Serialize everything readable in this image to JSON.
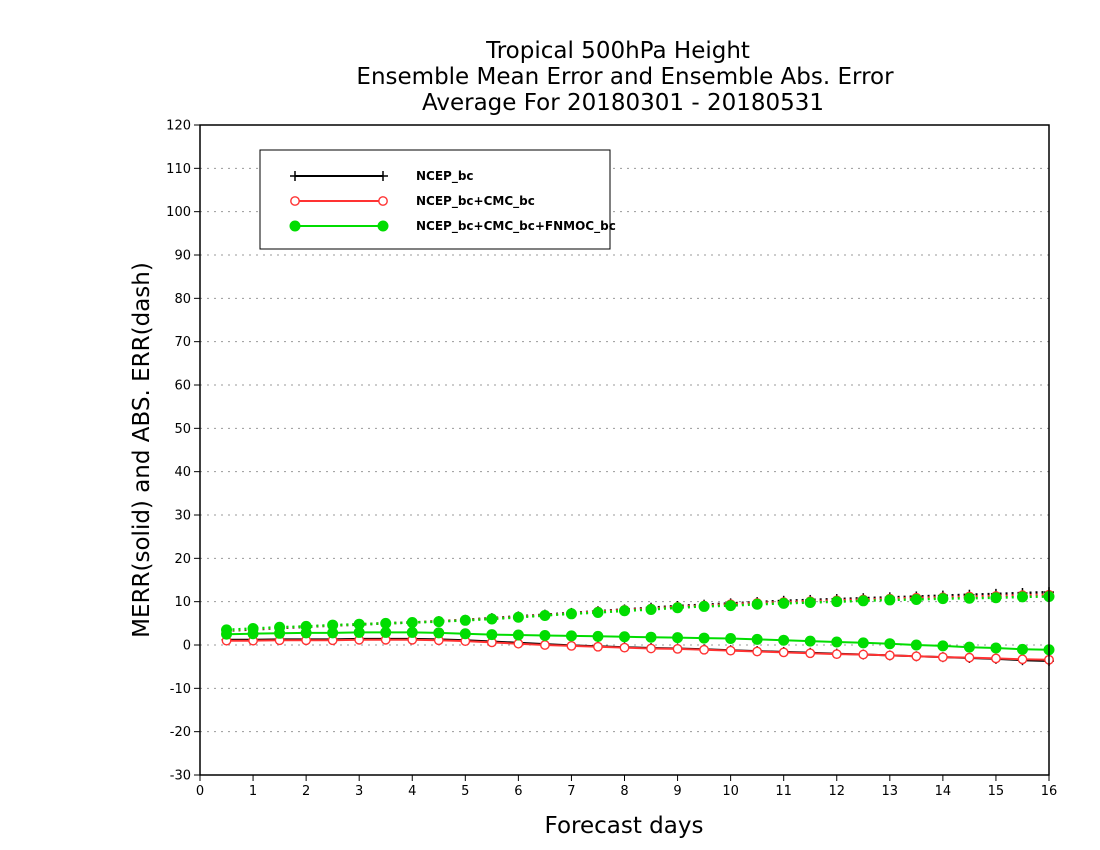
{
  "chart_data": {
    "type": "line",
    "title": [
      "Tropical 500hPa Height",
      "Ensemble Mean Error and Ensemble Abs. Error",
      "Average For 20180301 - 20180531"
    ],
    "xlabel": "Forecast days",
    "ylabel": "MERR(solid) and ABS. ERR(dash)",
    "xlim": [
      0,
      16
    ],
    "ylim": [
      -30,
      120
    ],
    "xticks": [
      0,
      1,
      2,
      3,
      4,
      5,
      6,
      7,
      8,
      9,
      10,
      11,
      12,
      13,
      14,
      15,
      16
    ],
    "yticks": [
      -30,
      -20,
      -10,
      0,
      10,
      20,
      30,
      40,
      50,
      60,
      70,
      80,
      90,
      100,
      110,
      120
    ],
    "grid": true,
    "legend_position": "top-left",
    "x": [
      0.5,
      1,
      1.5,
      2,
      2.5,
      3,
      3.5,
      4,
      4.5,
      5,
      5.5,
      6,
      6.5,
      7,
      7.5,
      8,
      8.5,
      9,
      9.5,
      10,
      10.5,
      11,
      11.5,
      12,
      12.5,
      13,
      13.5,
      14,
      14.5,
      15,
      15.5,
      16
    ],
    "series": [
      {
        "name": "NCEP_bc",
        "color": "#000000",
        "marker": "plus",
        "merr": [
          1.2,
          1.2,
          1.3,
          1.3,
          1.3,
          1.4,
          1.4,
          1.4,
          1.3,
          1.1,
          0.8,
          0.5,
          0.2,
          -0.1,
          -0.3,
          -0.5,
          -0.7,
          -0.8,
          -1.0,
          -1.2,
          -1.4,
          -1.6,
          -1.8,
          -2.0,
          -2.2,
          -2.4,
          -2.6,
          -2.8,
          -3.0,
          -3.2,
          -3.5,
          -3.7
        ],
        "abs_err": [
          3.3,
          3.6,
          3.9,
          4.2,
          4.5,
          4.7,
          5.0,
          5.2,
          5.5,
          5.8,
          6.2,
          6.6,
          7.0,
          7.4,
          7.8,
          8.2,
          8.6,
          9.0,
          9.3,
          9.6,
          9.9,
          10.2,
          10.4,
          10.6,
          10.8,
          11.0,
          11.2,
          11.4,
          11.6,
          11.8,
          12.0,
          12.2
        ]
      },
      {
        "name": "NCEP_bc+CMC_bc",
        "color": "#ff3333",
        "marker": "open-circle",
        "merr": [
          1.0,
          1.0,
          1.1,
          1.1,
          1.1,
          1.2,
          1.2,
          1.2,
          1.1,
          0.9,
          0.6,
          0.3,
          0.0,
          -0.2,
          -0.4,
          -0.6,
          -0.8,
          -0.9,
          -1.1,
          -1.3,
          -1.5,
          -1.7,
          -1.9,
          -2.1,
          -2.2,
          -2.4,
          -2.6,
          -2.8,
          -2.9,
          -3.1,
          -3.3,
          -3.4
        ],
        "abs_err": [
          3.4,
          3.7,
          4.0,
          4.3,
          4.5,
          4.8,
          5.0,
          5.2,
          5.5,
          5.8,
          6.1,
          6.5,
          6.9,
          7.3,
          7.7,
          8.1,
          8.4,
          8.8,
          9.1,
          9.4,
          9.7,
          9.9,
          10.1,
          10.3,
          10.5,
          10.7,
          10.9,
          11.0,
          11.2,
          11.3,
          11.5,
          11.6
        ]
      },
      {
        "name": "NCEP_bc+CMC_bc+FNMOC_bc",
        "color": "#00dd00",
        "marker": "filled-circle",
        "merr": [
          2.5,
          2.6,
          2.7,
          2.8,
          2.8,
          2.9,
          2.9,
          2.9,
          2.8,
          2.6,
          2.4,
          2.3,
          2.2,
          2.1,
          2.0,
          1.9,
          1.8,
          1.7,
          1.6,
          1.5,
          1.3,
          1.1,
          0.9,
          0.7,
          0.5,
          0.3,
          0.0,
          -0.2,
          -0.5,
          -0.7,
          -1.0,
          -1.1
        ],
        "abs_err": [
          3.5,
          3.8,
          4.1,
          4.3,
          4.6,
          4.8,
          5.0,
          5.2,
          5.4,
          5.7,
          6.0,
          6.4,
          6.8,
          7.2,
          7.5,
          7.9,
          8.2,
          8.6,
          8.9,
          9.1,
          9.4,
          9.6,
          9.8,
          10.0,
          10.2,
          10.4,
          10.5,
          10.7,
          10.8,
          10.9,
          11.1,
          11.2
        ]
      }
    ]
  }
}
